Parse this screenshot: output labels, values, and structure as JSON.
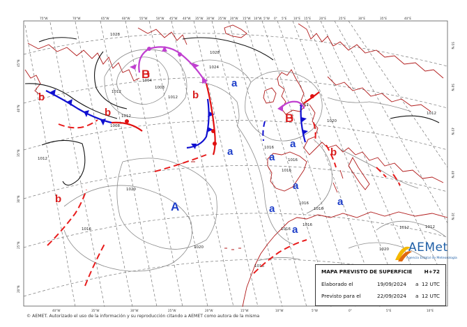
{
  "header_box": {
    "title": "MAPA PREVISTO DE SUPERFICIE",
    "forecast_step": "H+72",
    "elaborated_label": "Elaborado el",
    "elaborated_date": "19/09/2024",
    "elaborated_a": "a",
    "elaborated_time": "12 UTC",
    "valid_label": "Previsto para el",
    "valid_date": "22/09/2024",
    "valid_a": "a",
    "valid_time": "12 UTC"
  },
  "logo": {
    "name": "AEMet",
    "subtitle": "Agencia Estatal de Meteorología"
  },
  "footer": "© AEMET. Autorizado el uso de la información y su reproducción citando a AEMET como autora de la misma",
  "pressure_centers": [
    {
      "label": "B",
      "kind": "low"
    },
    {
      "label": "B",
      "kind": "low"
    },
    {
      "label": "A",
      "kind": "high"
    }
  ],
  "minor_centers": [
    "b",
    "b",
    "b",
    "b",
    "b"
  ],
  "region_labels": [
    "a",
    "a",
    "a",
    "a",
    "a",
    "a",
    "a",
    "a"
  ],
  "isobars": [
    "1028",
    "1028",
    "1012",
    "1004",
    "1008",
    "1012",
    "1008",
    "1012",
    "1020",
    "1020",
    "1016",
    "1016",
    "1016",
    "1016",
    "1016",
    "1016",
    "1016",
    "1016",
    "1012",
    "1012",
    "1012",
    "1020",
    "1016",
    "1020",
    "1012",
    "1024",
    "1012"
  ],
  "top_ticks": [
    "75°W",
    "70°W",
    "65°W",
    "60°W",
    "55°W",
    "50°W",
    "45°W",
    "40°W",
    "35°W",
    "30°W",
    "25°W",
    "20°W",
    "15°W",
    "10°W",
    "5°W",
    "0°",
    "5°E",
    "10°E",
    "15°E",
    "20°E",
    "25°E",
    "30°E",
    "35°E",
    "40°E"
  ],
  "bottom_ticks": [
    "40°W",
    "35°W",
    "30°W",
    "25°W",
    "20°W",
    "15°W",
    "10°W",
    "5°W",
    "0°",
    "5°E",
    "10°E"
  ],
  "left_ticks": [
    "45°N",
    "40°N",
    "35°N",
    "30°N",
    "25°N",
    "20°N"
  ],
  "right_ticks": [
    "55°N",
    "50°N",
    "45°N",
    "40°N",
    "35°N"
  ],
  "colors": {
    "low": "#d91e1e",
    "high": "#1d3ec9",
    "cold_front": "#1010d0",
    "warm_front": "#e01010",
    "occluded": "#c040d0",
    "trough": "#e81c1c",
    "coast": "#b01818",
    "grid": "#777777",
    "isobar": "#8a8a8a",
    "isobar_bold": "#111111"
  }
}
